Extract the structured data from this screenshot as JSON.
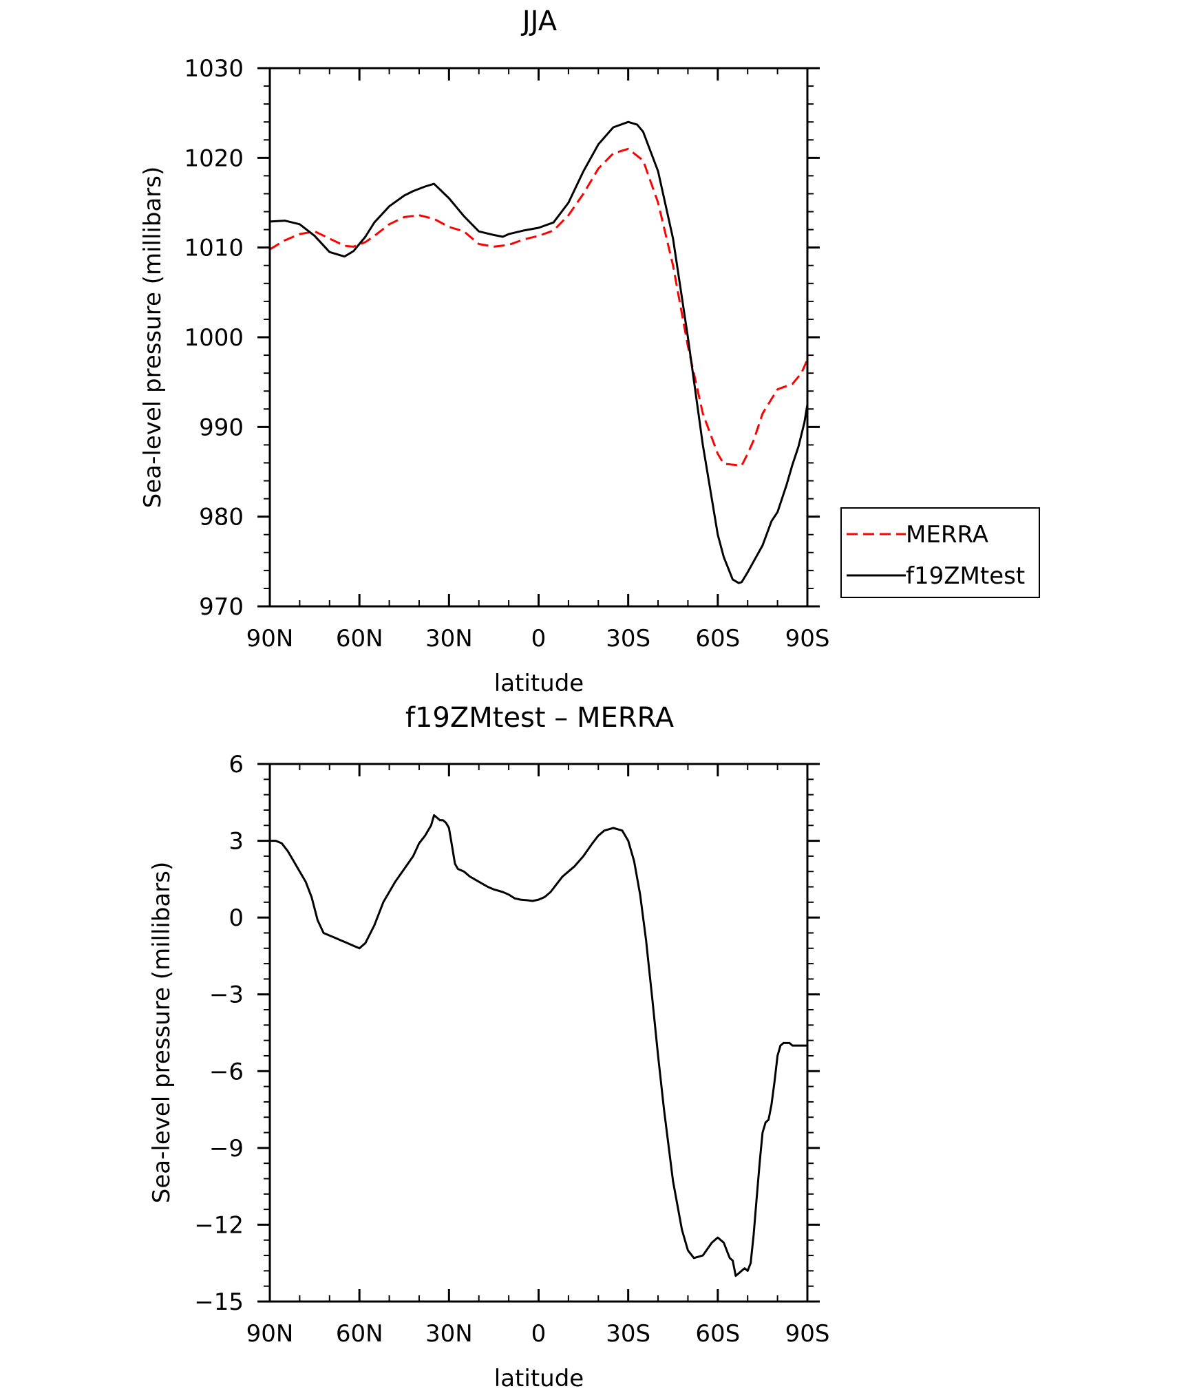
{
  "chart_data": [
    {
      "type": "line",
      "title": "JJA",
      "xlabel": "latitude",
      "ylabel": "Sea-level pressure (millibars)",
      "xlim": [
        90,
        -90
      ],
      "ylim": [
        970,
        1030
      ],
      "x_ticks": [
        {
          "value": 90,
          "label": "90N"
        },
        {
          "value": 60,
          "label": "60N"
        },
        {
          "value": 30,
          "label": "30N"
        },
        {
          "value": 0,
          "label": "0"
        },
        {
          "value": -30,
          "label": "30S"
        },
        {
          "value": -60,
          "label": "60S"
        },
        {
          "value": -90,
          "label": "90S"
        }
      ],
      "y_ticks": [
        {
          "value": 1030,
          "label": "1030"
        },
        {
          "value": 1020,
          "label": "1020"
        },
        {
          "value": 1010,
          "label": "1010"
        },
        {
          "value": 1000,
          "label": "1000"
        },
        {
          "value": 990,
          "label": "990"
        },
        {
          "value": 980,
          "label": "980"
        },
        {
          "value": 970,
          "label": "970"
        }
      ],
      "legend": {
        "placement": "right"
      },
      "series": [
        {
          "name": "MERRA",
          "color": "#ff0000",
          "dash": "dashed",
          "x": [
            90,
            85,
            80,
            75,
            70,
            65,
            62,
            58,
            55,
            50,
            45,
            40,
            35,
            30,
            25,
            20,
            15,
            10,
            5,
            0,
            -5,
            -10,
            -15,
            -20,
            -25,
            -30,
            -35,
            -40,
            -45,
            -50,
            -55,
            -60,
            -62,
            -65,
            -68,
            -70,
            -72,
            -75,
            -80,
            -85,
            -88,
            -90
          ],
          "y": [
            1009.8,
            1010.8,
            1011.5,
            1011.8,
            1011.0,
            1010.2,
            1010.1,
            1010.6,
            1011.3,
            1012.6,
            1013.4,
            1013.6,
            1013.2,
            1012.3,
            1011.8,
            1010.4,
            1010.1,
            1010.3,
            1010.9,
            1011.3,
            1011.9,
            1013.6,
            1016.0,
            1018.8,
            1020.5,
            1021.0,
            1019.7,
            1015.0,
            1008.0,
            999.0,
            991.5,
            987.0,
            985.9,
            985.8,
            985.7,
            987.0,
            988.5,
            991.5,
            994.2,
            994.8,
            996.0,
            997.5
          ]
        },
        {
          "name": "f19ZMtest",
          "color": "#000000",
          "dash": "solid",
          "x": [
            90,
            85,
            80,
            75,
            70,
            65,
            62,
            58,
            55,
            50,
            45,
            42,
            38,
            35,
            30,
            25,
            20,
            15,
            12,
            10,
            5,
            0,
            -5,
            -10,
            -15,
            -20,
            -25,
            -30,
            -33,
            -35,
            -40,
            -45,
            -50,
            -55,
            -60,
            -62,
            -65,
            -67,
            -68,
            -70,
            -72,
            -75,
            -78,
            -80,
            -83,
            -85,
            -87,
            -89,
            -90
          ],
          "y": [
            1012.9,
            1013.0,
            1012.6,
            1011.3,
            1009.5,
            1009.0,
            1009.6,
            1011.2,
            1012.8,
            1014.6,
            1015.8,
            1016.3,
            1016.8,
            1017.1,
            1015.5,
            1013.5,
            1011.8,
            1011.4,
            1011.2,
            1011.5,
            1011.9,
            1012.2,
            1012.8,
            1015.0,
            1018.5,
            1021.5,
            1023.4,
            1024.0,
            1023.7,
            1022.9,
            1018.5,
            1011.0,
            1000.0,
            988.0,
            978.0,
            975.5,
            973.0,
            972.6,
            972.7,
            973.8,
            975.0,
            976.8,
            979.5,
            980.5,
            983.5,
            985.8,
            987.8,
            990.5,
            992.5
          ]
        }
      ]
    },
    {
      "type": "line",
      "title": "f19ZMtest – MERRA",
      "xlabel": "latitude",
      "ylabel": "Sea-level pressure (millibars)",
      "xlim": [
        90,
        -90
      ],
      "ylim": [
        -15,
        6
      ],
      "x_ticks": [
        {
          "value": 90,
          "label": "90N"
        },
        {
          "value": 60,
          "label": "60N"
        },
        {
          "value": 30,
          "label": "30N"
        },
        {
          "value": 0,
          "label": "0"
        },
        {
          "value": -30,
          "label": "30S"
        },
        {
          "value": -60,
          "label": "60S"
        },
        {
          "value": -90,
          "label": "90S"
        }
      ],
      "y_ticks": [
        {
          "value": 6,
          "label": "6"
        },
        {
          "value": 3,
          "label": "3"
        },
        {
          "value": 0,
          "label": "0"
        },
        {
          "value": -3,
          "label": "−3"
        },
        {
          "value": -6,
          "label": "−6"
        },
        {
          "value": -9,
          "label": "−9"
        },
        {
          "value": -12,
          "label": "−12"
        },
        {
          "value": -15,
          "label": "−15"
        }
      ],
      "series": [
        {
          "color": "#000000",
          "dash": "solid",
          "x": [
            90,
            88,
            86,
            84,
            82,
            80,
            78,
            76,
            74,
            72,
            70,
            68,
            66,
            64,
            62,
            60,
            58,
            55,
            52,
            48,
            45,
            42,
            40,
            38,
            36,
            35,
            34,
            33,
            32,
            31,
            30,
            29,
            28,
            27,
            25,
            23,
            20,
            17,
            15,
            12,
            10,
            8,
            6,
            4,
            2,
            0,
            -2,
            -4,
            -6,
            -8,
            -10,
            -12,
            -15,
            -18,
            -20,
            -22,
            -25,
            -28,
            -30,
            -32,
            -34,
            -36,
            -37,
            -38,
            -40,
            -42,
            -45,
            -48,
            -50,
            -52,
            -55,
            -58,
            -60,
            -62,
            -64,
            -65,
            -66,
            -67,
            -68,
            -69,
            -70,
            -71,
            -72,
            -73,
            -74,
            -74.5,
            -75,
            -76,
            -77,
            -78,
            -79,
            -80,
            -81,
            -82,
            -83,
            -84,
            -85,
            -86,
            -87,
            -88,
            -89,
            -90
          ],
          "y": [
            3.0,
            3.0,
            2.9,
            2.6,
            2.2,
            1.8,
            1.4,
            0.8,
            -0.1,
            -0.6,
            -0.7,
            -0.8,
            -0.9,
            -1.0,
            -1.1,
            -1.2,
            -1.0,
            -0.3,
            0.6,
            1.4,
            1.9,
            2.4,
            2.9,
            3.2,
            3.6,
            4.0,
            3.9,
            3.8,
            3.8,
            3.7,
            3.5,
            2.8,
            2.1,
            1.9,
            1.8,
            1.6,
            1.4,
            1.2,
            1.1,
            1.0,
            0.9,
            0.75,
            0.7,
            0.68,
            0.65,
            0.7,
            0.8,
            1.0,
            1.3,
            1.6,
            1.8,
            2.0,
            2.4,
            2.9,
            3.2,
            3.4,
            3.5,
            3.4,
            3.0,
            2.2,
            0.9,
            -0.9,
            -2.0,
            -3.1,
            -5.4,
            -7.5,
            -10.3,
            -12.2,
            -13.0,
            -13.3,
            -13.2,
            -12.7,
            -12.5,
            -12.7,
            -13.3,
            -13.4,
            -14.0,
            -13.9,
            -13.8,
            -13.7,
            -13.8,
            -13.5,
            -12.4,
            -11.0,
            -9.6,
            -9.0,
            -8.4,
            -8.0,
            -7.9,
            -7.3,
            -6.4,
            -5.4,
            -5.0,
            -4.9,
            -4.9,
            -4.9,
            -5.0,
            -5.0,
            -5.0,
            -5.0,
            -5.0,
            -5.0
          ]
        }
      ]
    }
  ]
}
